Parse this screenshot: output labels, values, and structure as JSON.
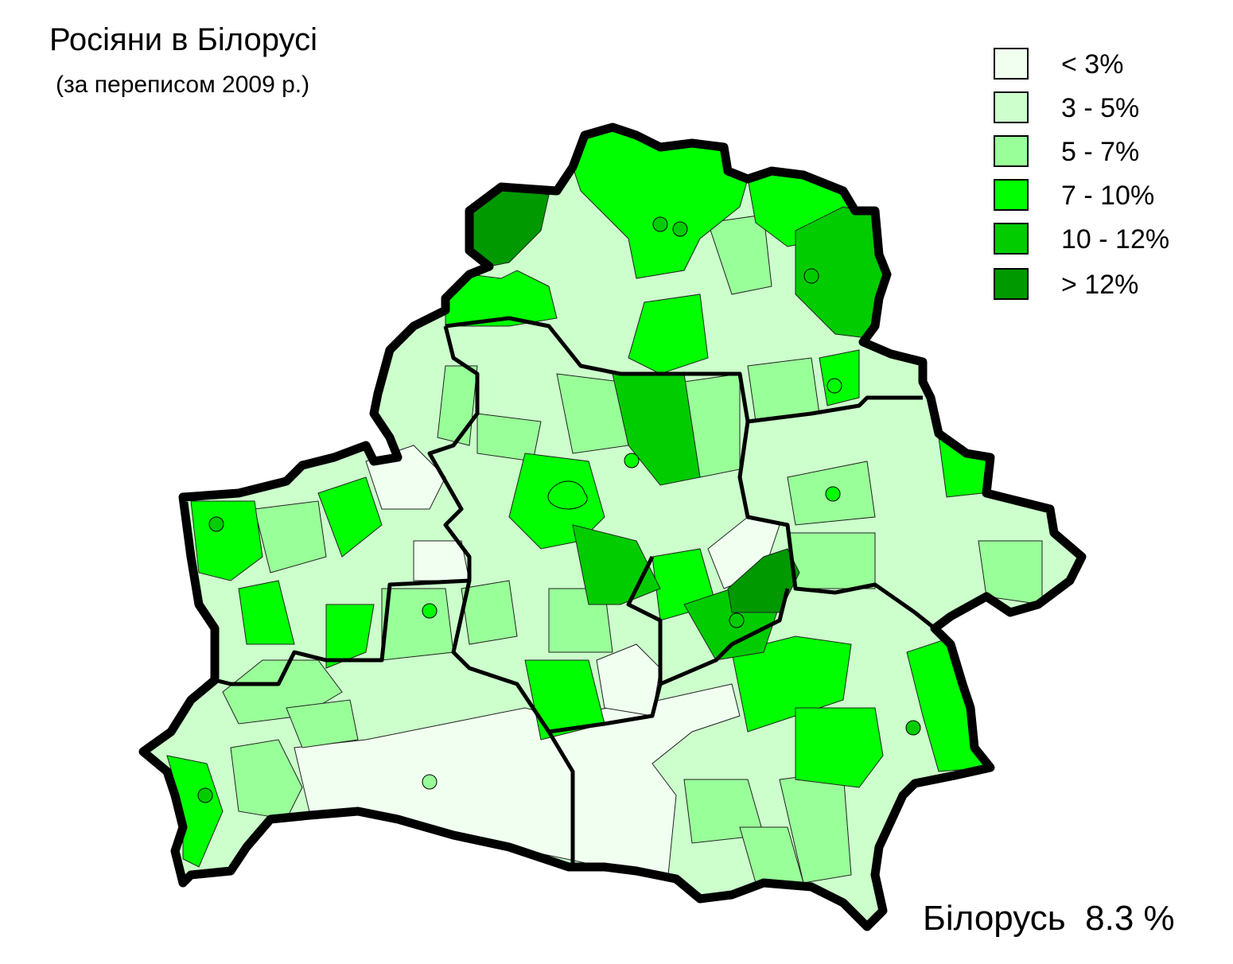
{
  "title": "Росіяни в Білорусі",
  "subtitle": "(за переписом 2009 р.)",
  "legend": [
    {
      "label": "< 3%",
      "color": "#f0fff0"
    },
    {
      "label": "3 - 5%",
      "color": "#ccffcc"
    },
    {
      "label": "5 - 7%",
      "color": "#99ff99"
    },
    {
      "label": "7 - 10%",
      "color": "#00ff00"
    },
    {
      "label": "10 - 12%",
      "color": "#00cc00"
    },
    {
      "label": "> 12%",
      "color": "#009900"
    }
  ],
  "total": {
    "country": "Білорусь",
    "value": "8.3 %"
  }
}
